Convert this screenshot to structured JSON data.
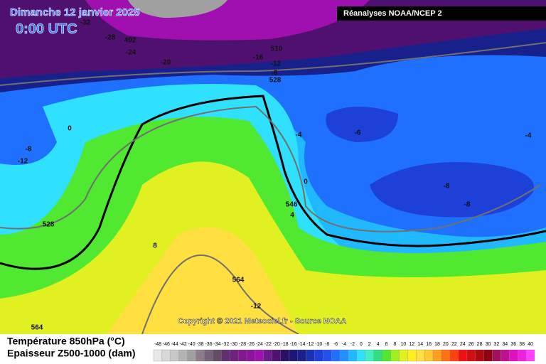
{
  "header": {
    "date": "Dimanche 12 janvier 2025",
    "time": "0:00 UTC",
    "source": "Réanalyses NOAA/NCEP 2"
  },
  "contour_labels": [
    "-32",
    "-28",
    "492",
    "-24",
    "-20",
    "510",
    "-16",
    "-12",
    "-8",
    "528",
    "0",
    "-8",
    "-12",
    "-4",
    "-6",
    "-4",
    "0",
    "-8",
    "-8",
    "546",
    "4",
    "528",
    "8",
    "564",
    "-12",
    "564"
  ],
  "footer": {
    "copyright": "Copyright © 2021 Meteociel.fr - Source NOAA",
    "legend_temperature": "Température 850hPa (°C)",
    "legend_thickness": "Epaisseur Z500-1000 (dam)"
  },
  "scale": [
    {
      "label": "-48",
      "color": "#e8e8e8"
    },
    {
      "label": "-46",
      "color": "#d8d8d8"
    },
    {
      "label": "-44",
      "color": "#c8c8c8"
    },
    {
      "label": "-42",
      "color": "#b4b4b4"
    },
    {
      "label": "-40",
      "color": "#a0a0a0"
    },
    {
      "label": "-38",
      "color": "#8c7c8c"
    },
    {
      "label": "-36",
      "color": "#786078"
    },
    {
      "label": "-34",
      "color": "#644c64"
    },
    {
      "label": "-32",
      "color": "#603070"
    },
    {
      "label": "-30",
      "color": "#702080"
    },
    {
      "label": "-28",
      "color": "#801890"
    },
    {
      "label": "-26",
      "color": "#9010a0"
    },
    {
      "label": "-24",
      "color": "#a010b0"
    },
    {
      "label": "-22",
      "color": "#6a1a8a"
    },
    {
      "label": "-20",
      "color": "#501070"
    },
    {
      "label": "-18",
      "color": "#2a1064"
    },
    {
      "label": "-16",
      "color": "#1c1478"
    },
    {
      "label": "-14",
      "color": "#18208c"
    },
    {
      "label": "-12",
      "color": "#1830b4"
    },
    {
      "label": "-10",
      "color": "#1c40d8"
    },
    {
      "label": "-8",
      "color": "#2050f0"
    },
    {
      "label": "-6",
      "color": "#2070ff"
    },
    {
      "label": "-4",
      "color": "#2090ff"
    },
    {
      "label": "-2",
      "color": "#20b8ff"
    },
    {
      "label": "0",
      "color": "#30e0ff"
    },
    {
      "label": "2",
      "color": "#40f0c0"
    },
    {
      "label": "4",
      "color": "#30e080"
    },
    {
      "label": "6",
      "color": "#50e830"
    },
    {
      "label": "8",
      "color": "#a0f020"
    },
    {
      "label": "10",
      "color": "#e0f020"
    },
    {
      "label": "12",
      "color": "#fff020"
    },
    {
      "label": "14",
      "color": "#ffe040"
    },
    {
      "label": "16",
      "color": "#ffc830"
    },
    {
      "label": "18",
      "color": "#ffa020"
    },
    {
      "label": "20",
      "color": "#ff7010"
    },
    {
      "label": "22",
      "color": "#ff4010"
    },
    {
      "label": "24",
      "color": "#f01010"
    },
    {
      "label": "26",
      "color": "#d01010"
    },
    {
      "label": "28",
      "color": "#b00810"
    },
    {
      "label": "30",
      "color": "#900010"
    },
    {
      "label": "32",
      "color": "#a01060"
    },
    {
      "label": "34",
      "color": "#c01090"
    },
    {
      "label": "36",
      "color": "#e010c0"
    },
    {
      "label": "38",
      "color": "#f020e0"
    },
    {
      "label": "40",
      "color": "#ff40ff"
    }
  ]
}
